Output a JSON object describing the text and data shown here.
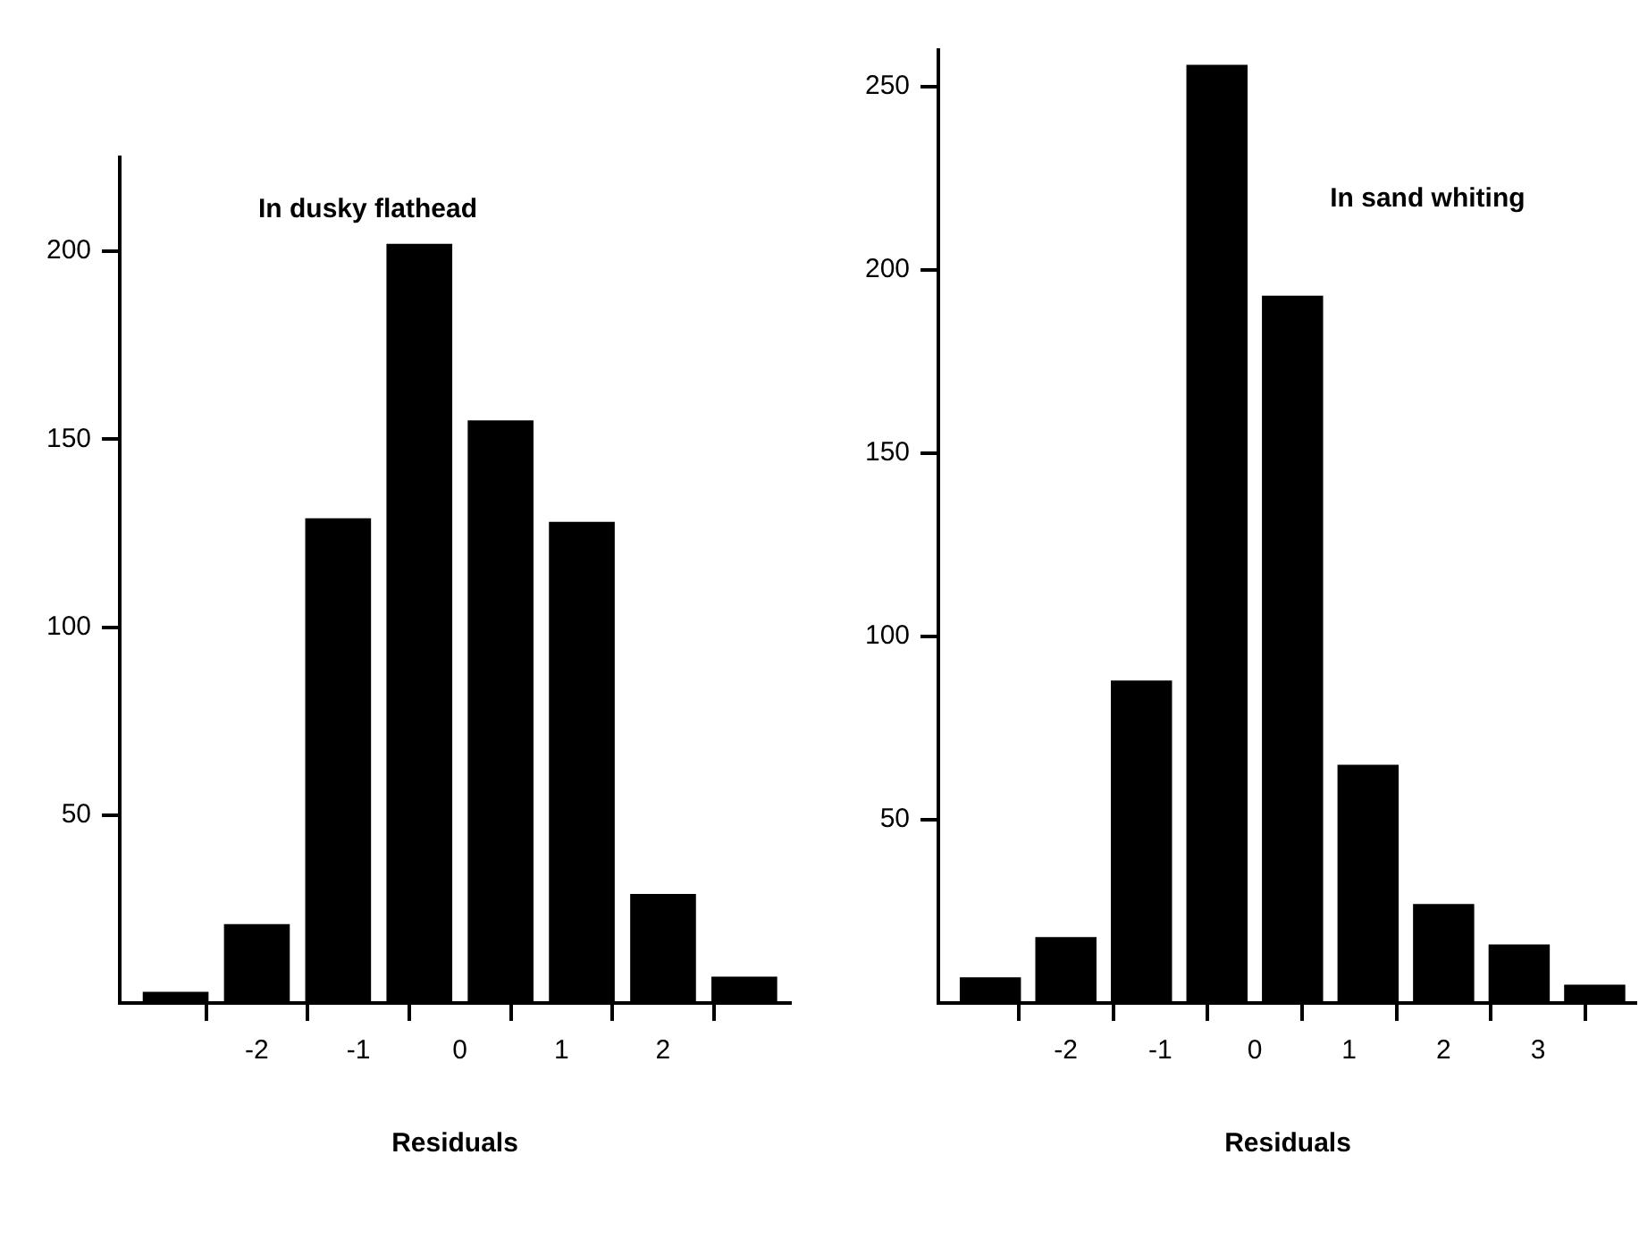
{
  "chart_data": [
    {
      "type": "histogram",
      "title": "In dusky flathead",
      "xlabel": "Residuals",
      "bins": [
        -3.2,
        -2.4,
        -1.6,
        -0.8,
        0,
        0.8,
        1.6,
        2.4,
        3.2
      ],
      "values": [
        3,
        21,
        129,
        202,
        155,
        128,
        29,
        7
      ],
      "color": "#000000",
      "xlim": [
        -3.35,
        3.25
      ],
      "xticks": [
        -2,
        -1,
        0,
        1,
        2
      ],
      "ylim": [
        0,
        225
      ],
      "yticks": [
        50,
        100,
        150,
        200
      ]
    },
    {
      "type": "histogram",
      "title": "In sand whiting",
      "xlabel": "Residuals",
      "bins": [
        -3.2,
        -2.4,
        -1.6,
        -0.8,
        0,
        0.8,
        1.6,
        2.4,
        3.2,
        4.0
      ],
      "values": [
        7,
        18,
        88,
        256,
        193,
        65,
        27,
        16,
        5
      ],
      "color": "#000000",
      "xlim": [
        -3.35,
        4.05
      ],
      "xticks": [
        -2,
        -1,
        0,
        1,
        2,
        3
      ],
      "ylim": [
        0,
        260
      ],
      "yticks": [
        50,
        100,
        150,
        200,
        250
      ]
    }
  ]
}
